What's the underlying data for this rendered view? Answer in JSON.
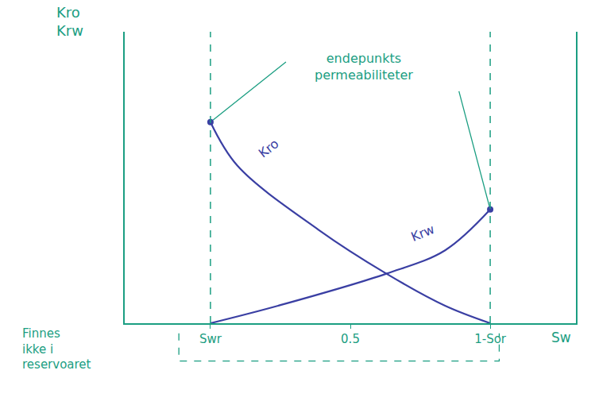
{
  "chart_data": {
    "type": "line",
    "ylabel": [
      "Kro",
      "Krw"
    ],
    "xlabel": "Sw",
    "series": [
      {
        "name": "Kro",
        "color": "#3a3fa3",
        "x": [
          0.19,
          0.25,
          0.43,
          0.58,
          0.71,
          0.81
        ],
        "values": [
          0.69,
          0.54,
          0.32,
          0.17,
          0.06,
          0
        ]
      },
      {
        "name": "Krw",
        "color": "#3a3fa3",
        "x": [
          0.19,
          0.34,
          0.58,
          0.71,
          0.81
        ],
        "values": [
          0,
          0.06,
          0.17,
          0.25,
          0.39
        ]
      }
    ],
    "xlim": [
      0,
      1
    ],
    "ylim": [
      0,
      1
    ],
    "xticks": [
      {
        "value": 0.19,
        "label": "Swr"
      },
      0.5,
      {
        "value": 0.81,
        "label": "1-Sor"
      }
    ],
    "yticks": [],
    "tick_labels": "x",
    "grid": false,
    "vlines": [
      0.19,
      0.81
    ],
    "endpoints": {
      "label": "endepunkts permeabiliteter",
      "points": [
        [
          0.19,
          0.69
        ],
        [
          0.81,
          0.39
        ]
      ]
    },
    "annotations": [
      {
        "text": "Finnes ikke i reservoaret"
      }
    ]
  }
}
